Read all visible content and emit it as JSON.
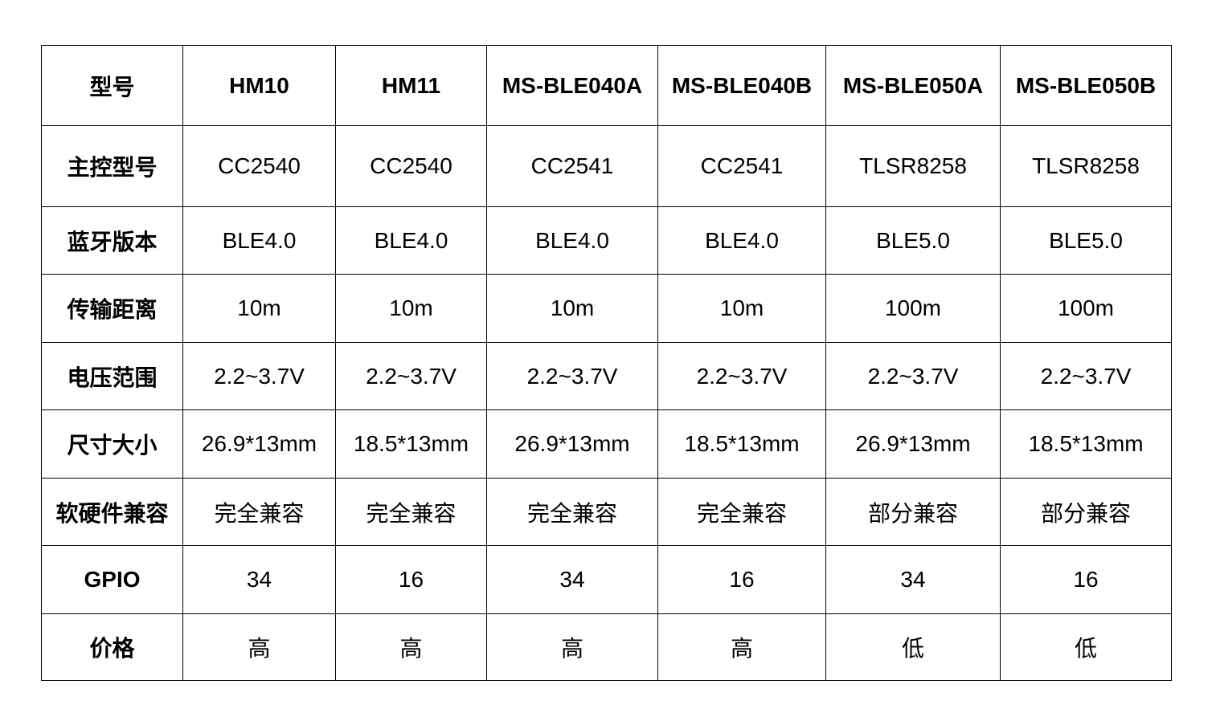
{
  "table": {
    "header": [
      "型号",
      "HM10",
      "HM11",
      "MS-BLE040A",
      "MS-BLE040B",
      "MS-BLE050A",
      "MS-BLE050B"
    ],
    "rows": [
      [
        "主控型号",
        "CC2540",
        "CC2540",
        "CC2541",
        "CC2541",
        "TLSR8258",
        "TLSR8258"
      ],
      [
        "蓝牙版本",
        "BLE4.0",
        "BLE4.0",
        "BLE4.0",
        "BLE4.0",
        "BLE5.0",
        "BLE5.0"
      ],
      [
        "传输距离",
        "10m",
        "10m",
        "10m",
        "10m",
        "100m",
        "100m"
      ],
      [
        "电压范围",
        "2.2~3.7V",
        "2.2~3.7V",
        "2.2~3.7V",
        "2.2~3.7V",
        "2.2~3.7V",
        "2.2~3.7V"
      ],
      [
        "尺寸大小",
        "26.9*13mm",
        "18.5*13mm",
        "26.9*13mm",
        "18.5*13mm",
        "26.9*13mm",
        "18.5*13mm"
      ],
      [
        "软硬件兼容",
        "完全兼容",
        "完全兼容",
        "完全兼容",
        "完全兼容",
        "部分兼容",
        "部分兼容"
      ],
      [
        "GPIO",
        "34",
        "16",
        "34",
        "16",
        "34",
        "16"
      ],
      [
        "价格",
        "高",
        "高",
        "高",
        "高",
        "低",
        "低"
      ]
    ]
  }
}
